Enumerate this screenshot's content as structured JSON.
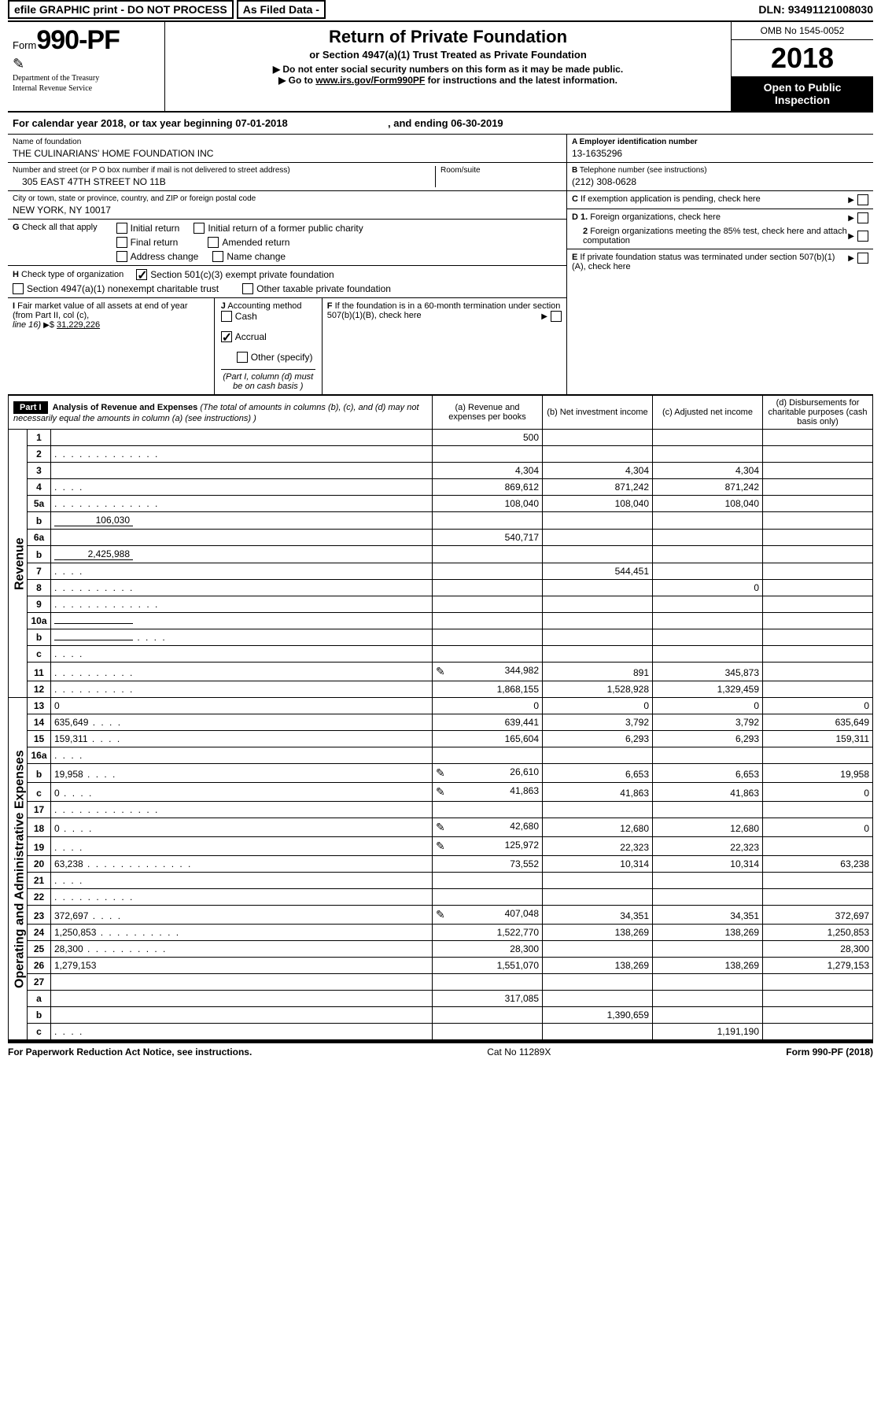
{
  "topbar": {
    "efile": "efile GRAPHIC print - DO NOT PROCESS",
    "asfiled": "As Filed Data -",
    "dln_label": "DLN:",
    "dln": "93491121008030"
  },
  "header": {
    "form_label": "Form",
    "form_no": "990-PF",
    "dept1": "Department of the Treasury",
    "dept2": "Internal Revenue Service",
    "title": "Return of Private Foundation",
    "sub1": "or Section 4947(a)(1) Trust Treated as Private Foundation",
    "sub2": "▶ Do not enter social security numbers on this form as it may be made public.",
    "sub3_pre": "▶ Go to ",
    "sub3_link": "www.irs.gov/Form990PF",
    "sub3_post": " for instructions and the latest information.",
    "omb": "OMB No 1545-0052",
    "year": "2018",
    "inspect": "Open to Public Inspection"
  },
  "cy": {
    "text1": "For calendar year 2018, or tax year beginning ",
    "begin": "07-01-2018",
    "text2": ", and ending ",
    "end": "06-30-2019"
  },
  "left": {
    "name_lbl": "Name of foundation",
    "name": "THE CULINARIANS' HOME FOUNDATION INC",
    "addr_lbl": "Number and street (or P O  box number if mail is not delivered to street address)",
    "room_lbl": "Room/suite",
    "addr": "305 EAST 47TH STREET NO 11B",
    "city_lbl": "City or town, state or province, country, and ZIP or foreign postal code",
    "city": "NEW YORK, NY  10017",
    "g_lbl": "G",
    "g_text": "Check all that apply",
    "g_opts": {
      "initial": "Initial return",
      "initial_former": "Initial return of a former public charity",
      "final": "Final return",
      "amended": "Amended return",
      "addr_chg": "Address change",
      "name_chg": "Name change"
    },
    "h_lbl": "H",
    "h_text": "Check type of organization",
    "h_501c3": "Section 501(c)(3) exempt private foundation",
    "h_4947": "Section 4947(a)(1) nonexempt charitable trust",
    "h_other": "Other taxable private foundation",
    "i_lbl": "I",
    "i_text1": "Fair market value of all assets at end of year (from Part II, col  (c),",
    "i_text2": "line 16)",
    "i_amount": "31,229,226",
    "j_lbl": "J",
    "j_text": "Accounting method",
    "j_cash": "Cash",
    "j_accrual": "Accrual",
    "j_other": "Other (specify)",
    "j_note": "(Part I, column (d) must be on cash basis )"
  },
  "right": {
    "a_lbl": "A Employer identification number",
    "a_val": "13-1635296",
    "b_lbl": "B",
    "b_text": "Telephone number (see instructions)",
    "b_val": "(212) 308-0628",
    "c_lbl": "C",
    "c_text": "If exemption application is pending, check here",
    "d1_lbl": "D 1.",
    "d1_text": "Foreign organizations, check here",
    "d2_lbl": "2",
    "d2_text": "Foreign organizations meeting the 85% test, check here and attach computation",
    "e_lbl": "E",
    "e_text": "If private foundation status was terminated under section 507(b)(1)(A), check here",
    "f_lbl": "F",
    "f_text": "If the foundation is in a 60-month termination under section 507(b)(1)(B), check here"
  },
  "part1": {
    "part_lbl": "Part I",
    "title": "Analysis of Revenue and Expenses",
    "title_note": " (The total of amounts in columns (b), (c), and (d) may not necessarily equal the amounts in column (a) (see instructions) )",
    "col_a": "(a)    Revenue and expenses per books",
    "col_b": "(b)   Net investment income",
    "col_c": "(c)   Adjusted net income",
    "col_d": "(d)   Disbursements for charitable purposes (cash basis only)",
    "side_rev": "Revenue",
    "side_exp": "Operating and Administrative Expenses",
    "rows": [
      {
        "n": "1",
        "d": "",
        "a": "500",
        "b": "",
        "c": ""
      },
      {
        "n": "2",
        "d": "",
        "dots": "l",
        "a": "",
        "b": "",
        "c": ""
      },
      {
        "n": "3",
        "d": "",
        "a": "4,304",
        "b": "4,304",
        "c": "4,304"
      },
      {
        "n": "4",
        "d": "",
        "dots": "s",
        "a": "869,612",
        "b": "871,242",
        "c": "871,242"
      },
      {
        "n": "5a",
        "d": "",
        "dots": "l",
        "a": "108,040",
        "b": "108,040",
        "c": "108,040"
      },
      {
        "n": "b",
        "d": "",
        "inline": "106,030",
        "a": "",
        "b": "",
        "c": ""
      },
      {
        "n": "6a",
        "d": "",
        "a": "540,717",
        "b": "",
        "c": ""
      },
      {
        "n": "b",
        "d": "",
        "inline": "2,425,988",
        "a": "",
        "b": "",
        "c": ""
      },
      {
        "n": "7",
        "d": "",
        "dots": "s",
        "a": "",
        "b": "544,451",
        "c": ""
      },
      {
        "n": "8",
        "d": "",
        "dots": "",
        "a": "",
        "b": "",
        "c": "0"
      },
      {
        "n": "9",
        "d": "",
        "dots": "l",
        "a": "",
        "b": "",
        "c": ""
      },
      {
        "n": "10a",
        "d": "",
        "inline": " ",
        "a": "",
        "b": "",
        "c": ""
      },
      {
        "n": "b",
        "d": "",
        "dots": "s",
        "inline": " ",
        "a": "",
        "b": "",
        "c": ""
      },
      {
        "n": "c",
        "d": "",
        "dots": "s",
        "a": "",
        "b": "",
        "c": ""
      },
      {
        "n": "11",
        "d": "",
        "dots": "",
        "icon": true,
        "a": "344,982",
        "b": "891",
        "c": "345,873"
      },
      {
        "n": "12",
        "d": "",
        "dots": "",
        "a": "1,868,155",
        "b": "1,528,928",
        "c": "1,329,459"
      },
      {
        "n": "13",
        "d": "0",
        "a": "0",
        "b": "0",
        "c": "0"
      },
      {
        "n": "14",
        "d": "635,649",
        "dots": "s",
        "a": "639,441",
        "b": "3,792",
        "c": "3,792"
      },
      {
        "n": "15",
        "d": "159,311",
        "dots": "s",
        "a": "165,604",
        "b": "6,293",
        "c": "6,293"
      },
      {
        "n": "16a",
        "d": "",
        "dots": "s",
        "a": "",
        "b": "",
        "c": ""
      },
      {
        "n": "b",
        "d": "19,958",
        "dots": "s",
        "icon": true,
        "a": "26,610",
        "b": "6,653",
        "c": "6,653"
      },
      {
        "n": "c",
        "d": "0",
        "dots": "s",
        "icon": true,
        "a": "41,863",
        "b": "41,863",
        "c": "41,863"
      },
      {
        "n": "17",
        "d": "",
        "dots": "l",
        "a": "",
        "b": "",
        "c": ""
      },
      {
        "n": "18",
        "d": "0",
        "dots": "s",
        "icon": true,
        "a": "42,680",
        "b": "12,680",
        "c": "12,680"
      },
      {
        "n": "19",
        "d": "",
        "dots": "s",
        "icon": true,
        "a": "125,972",
        "b": "22,323",
        "c": "22,323"
      },
      {
        "n": "20",
        "d": "63,238",
        "dots": "l",
        "a": "73,552",
        "b": "10,314",
        "c": "10,314"
      },
      {
        "n": "21",
        "d": "",
        "dots": "s",
        "a": "",
        "b": "",
        "c": ""
      },
      {
        "n": "22",
        "d": "",
        "dots": "",
        "a": "",
        "b": "",
        "c": ""
      },
      {
        "n": "23",
        "d": "372,697",
        "dots": "s",
        "icon": true,
        "a": "407,048",
        "b": "34,351",
        "c": "34,351"
      },
      {
        "n": "24",
        "d": "1,250,853",
        "dots": "",
        "a": "1,522,770",
        "b": "138,269",
        "c": "138,269"
      },
      {
        "n": "25",
        "d": "28,300",
        "dots": "",
        "a": "28,300",
        "b": "",
        "c": ""
      },
      {
        "n": "26",
        "d": "1,279,153",
        "a": "1,551,070",
        "b": "138,269",
        "c": "138,269"
      },
      {
        "n": "27",
        "d": "",
        "a": "",
        "b": "",
        "c": ""
      },
      {
        "n": "a",
        "d": "",
        "a": "317,085",
        "b": "",
        "c": ""
      },
      {
        "n": "b",
        "d": "",
        "a": "",
        "b": "1,390,659",
        "c": ""
      },
      {
        "n": "c",
        "d": "",
        "dots": "s",
        "a": "",
        "b": "",
        "c": "1,191,190"
      }
    ]
  },
  "footer": {
    "left": "For Paperwork Reduction Act Notice, see instructions.",
    "mid": "Cat No  11289X",
    "right": "Form 990-PF (2018)"
  }
}
